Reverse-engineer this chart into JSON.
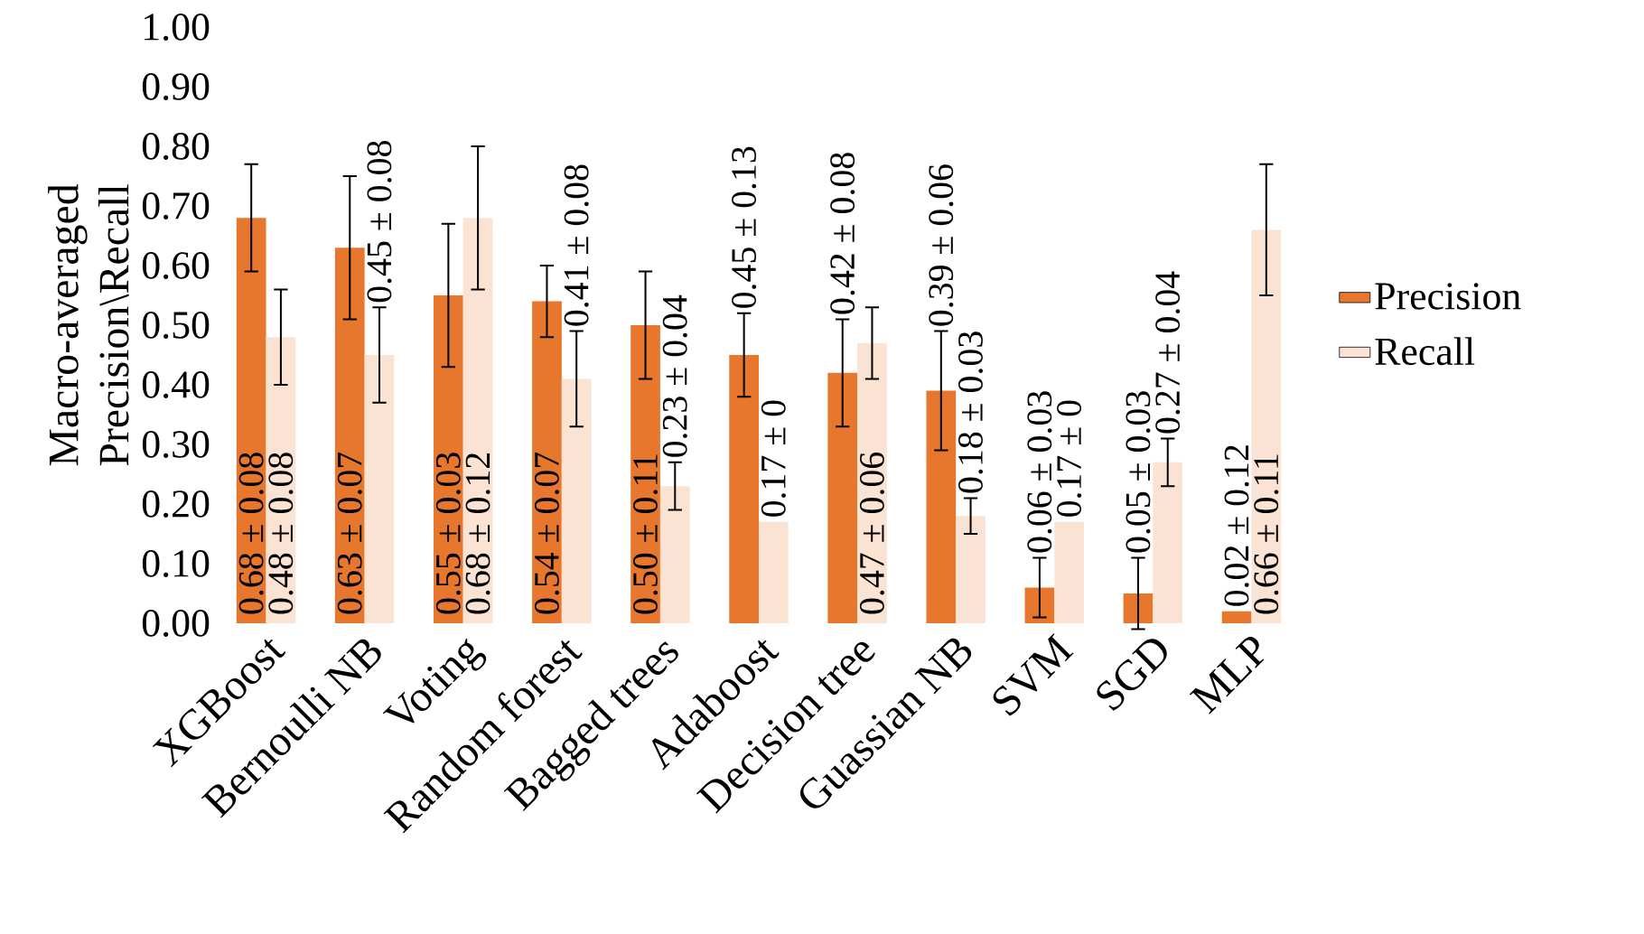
{
  "chart_data": {
    "type": "bar",
    "ylabel": "Macro-averaged Precision\\Recall",
    "categories": [
      "XGBoost",
      "Bernoulli NB",
      "Voting",
      "Random forest",
      "Bagged trees",
      "Adaboost",
      "Decision tree",
      "Guassian NB",
      "SVM",
      "SGD",
      "MLP"
    ],
    "series": [
      {
        "name": "Precision",
        "color": "#e8772e",
        "values": [
          0.68,
          0.63,
          0.55,
          0.54,
          0.5,
          0.45,
          0.42,
          0.39,
          0.06,
          0.05,
          0.02
        ],
        "errors": [
          0.09,
          0.12,
          0.12,
          0.06,
          0.09,
          0.07,
          0.09,
          0.1,
          0.05,
          0.06,
          null
        ],
        "value_labels": [
          "0.68 ± 0.08",
          "0.63 ± 0.07",
          "0.55 ± 0.03",
          "0.54 ± 0.07",
          "0.50 ± 0.11",
          "0.45 ± 0.13",
          "0.42 ± 0.08",
          "0.39 ± 0.06",
          "0.06 ± 0.03",
          "0.05 ± 0.03",
          "0.02 ± 0.12"
        ]
      },
      {
        "name": "Recall",
        "color": "#fbe3d3",
        "values": [
          0.48,
          0.45,
          0.68,
          0.41,
          0.23,
          0.17,
          0.47,
          0.18,
          0.17,
          0.27,
          0.66
        ],
        "errors": [
          0.08,
          0.08,
          0.12,
          0.08,
          0.04,
          null,
          0.06,
          0.03,
          null,
          0.04,
          0.11
        ],
        "value_labels": [
          "0.48 ± 0.08",
          "0.45 ± 0.08",
          "0.68 ± 0.12",
          "0.41 ± 0.08",
          "0.23 ± 0.04",
          "0.17 ± 0",
          "0.47 ± 0.06",
          "0.18 ± 0.03",
          "0.17 ± 0",
          "0.27 ± 0.04",
          "0.66 ± 0.11"
        ]
      }
    ],
    "ylim": [
      0,
      1
    ],
    "yticks": [
      {
        "value": 0,
        "label": "0.00"
      },
      {
        "value": 0.1,
        "label": "0.10"
      },
      {
        "value": 0.2,
        "label": "0.20"
      },
      {
        "value": 0.3,
        "label": "0.30"
      },
      {
        "value": 0.4,
        "label": "0.40"
      },
      {
        "value": 0.5,
        "label": "0.50"
      },
      {
        "value": 0.6,
        "label": "0.60"
      },
      {
        "value": 0.7,
        "label": "0.70"
      },
      {
        "value": 0.8,
        "label": "0.80"
      },
      {
        "value": 0.9,
        "label": "0.90"
      },
      {
        "value": 1,
        "label": "1.00"
      }
    ],
    "legend": "right",
    "grid": false
  }
}
